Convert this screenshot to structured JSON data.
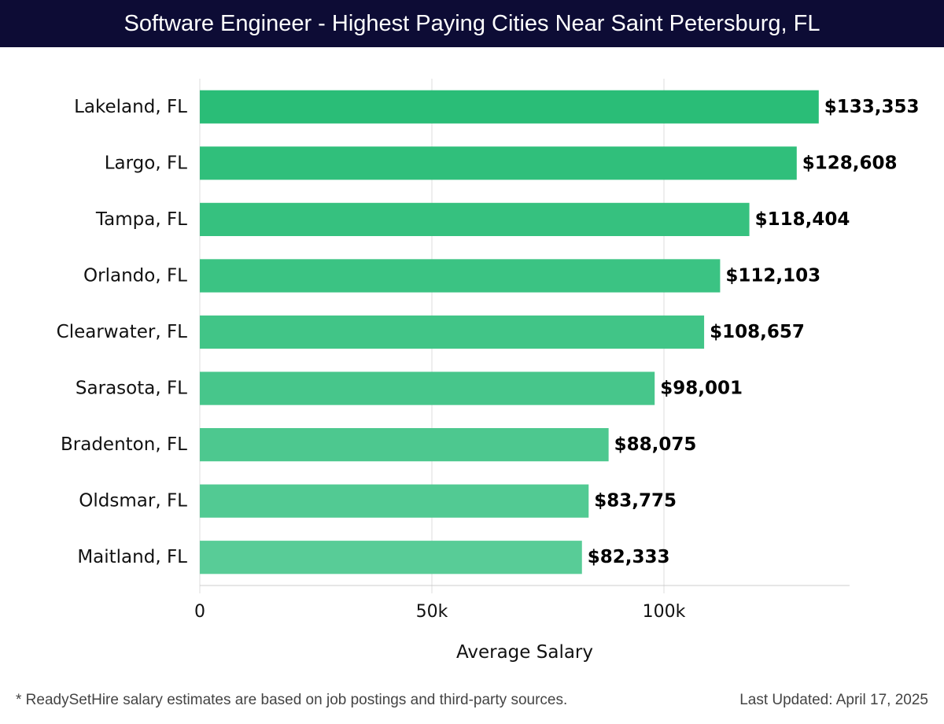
{
  "header": {
    "title": "Software Engineer - Highest Paying Cities Near Saint Petersburg, FL"
  },
  "footer": {
    "note": "* ReadySetHire salary estimates are based on job postings and third-party sources.",
    "updated": "Last Updated: April 17, 2025"
  },
  "colors": {
    "header_bg": "#0d0c35",
    "bar_top": "#2abd77",
    "bar_bottom": "#58cc97",
    "grid": "#dddddd"
  },
  "chart_data": {
    "type": "bar",
    "orientation": "horizontal",
    "title": "Software Engineer - Highest Paying Cities Near Saint Petersburg, FL",
    "xlabel": "Average Salary",
    "ylabel": "",
    "xlim": [
      0,
      140000
    ],
    "xticks": [
      0,
      50000,
      100000
    ],
    "xtick_labels": [
      "0",
      "50k",
      "100k"
    ],
    "grid": true,
    "categories": [
      "Lakeland, FL",
      "Largo, FL",
      "Tampa, FL",
      "Orlando, FL",
      "Clearwater, FL",
      "Sarasota, FL",
      "Bradenton, FL",
      "Oldsmar, FL",
      "Maitland, FL"
    ],
    "values": [
      133353,
      128608,
      118404,
      112103,
      108657,
      98001,
      88075,
      83775,
      82333
    ],
    "value_labels": [
      "$133,353",
      "$128,608",
      "$118,404",
      "$112,103",
      "$108,657",
      "$98,001",
      "$88,075",
      "$83,775",
      "$82,333"
    ]
  }
}
